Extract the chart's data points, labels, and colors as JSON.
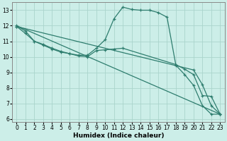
{
  "xlabel": "Humidex (Indice chaleur)",
  "bg_color": "#cceee8",
  "grid_color": "#aad4cc",
  "line_color": "#2e7d6e",
  "xlim": [
    -0.5,
    23.5
  ],
  "ylim": [
    5.8,
    13.5
  ],
  "yticks": [
    6,
    7,
    8,
    9,
    10,
    11,
    12,
    13
  ],
  "xticks": [
    0,
    1,
    2,
    3,
    4,
    5,
    6,
    7,
    8,
    9,
    10,
    11,
    12,
    13,
    14,
    15,
    16,
    17,
    18,
    19,
    20,
    21,
    22,
    23
  ],
  "lines": [
    {
      "x": [
        0,
        1,
        2,
        3,
        4,
        5,
        6,
        7,
        8,
        9,
        10,
        11,
        12,
        13,
        14,
        15,
        16,
        17,
        18,
        19,
        20,
        21,
        22,
        23
      ],
      "y": [
        12.0,
        11.65,
        11.0,
        10.8,
        10.55,
        10.35,
        10.2,
        10.1,
        10.1,
        10.55,
        11.1,
        12.45,
        13.2,
        13.05,
        13.0,
        13.0,
        12.85,
        12.55,
        9.45,
        8.85,
        8.15,
        6.85,
        6.3,
        6.3
      ],
      "markers": true
    },
    {
      "x": [
        0,
        1,
        2,
        3,
        4,
        5,
        6,
        7,
        8,
        9,
        10,
        11,
        12,
        18,
        19,
        20,
        21,
        22,
        23
      ],
      "y": [
        11.95,
        11.5,
        11.0,
        10.75,
        10.5,
        10.3,
        10.2,
        10.05,
        10.0,
        10.4,
        10.45,
        10.5,
        10.55,
        9.5,
        9.2,
        8.85,
        7.5,
        7.45,
        6.3
      ],
      "markers": true
    },
    {
      "x": [
        0,
        23
      ],
      "y": [
        12.0,
        6.3
      ],
      "markers": false
    },
    {
      "x": [
        0,
        20,
        21,
        22,
        23
      ],
      "y": [
        11.95,
        9.15,
        8.2,
        6.85,
        6.3
      ],
      "markers": true
    }
  ]
}
